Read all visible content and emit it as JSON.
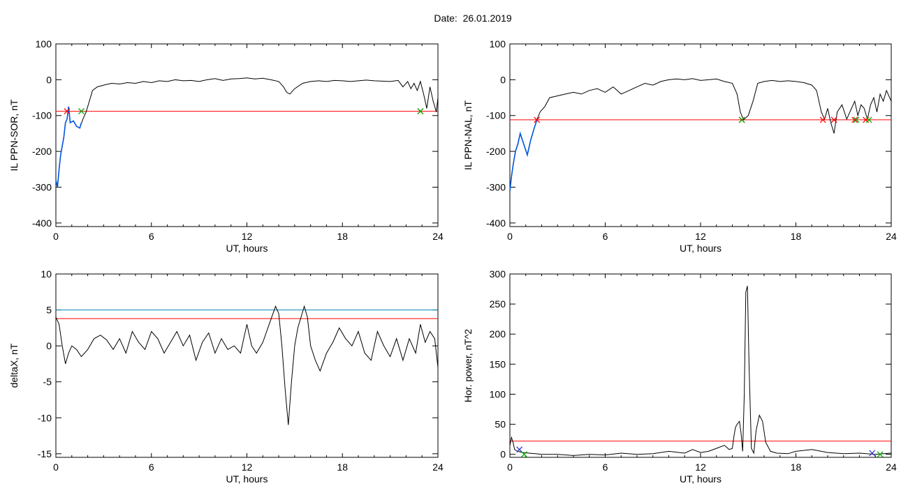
{
  "figure": {
    "title": "Date:  26.01.2019"
  },
  "chart_data": [
    {
      "id": "p1",
      "type": "line",
      "xlabel": "UT, hours",
      "ylabel": "IL PPN-SOR, nT",
      "xlim": [
        0,
        24
      ],
      "ylim": [
        -410,
        100
      ],
      "xticks": [
        0,
        6,
        12,
        18,
        24
      ],
      "yticks": [
        100,
        0,
        -100,
        -200,
        -300,
        -400
      ],
      "thresholds": [
        {
          "value": -88,
          "color": "#ff0000"
        }
      ],
      "markers": [
        {
          "x": 0.7,
          "y": -88,
          "symbol": "x",
          "color": "#ff0000"
        },
        {
          "x": 1.6,
          "y": -88,
          "symbol": "x",
          "color": "#00aa00"
        },
        {
          "x": 22.9,
          "y": -88,
          "symbol": "x",
          "color": "#ff0000"
        },
        {
          "x": 22.9,
          "y": -88,
          "symbol": "x",
          "color": "#00aa00"
        }
      ],
      "series": [
        {
          "color": "#000000",
          "x": [
            0,
            0.1,
            0.2,
            0.3,
            0.5,
            0.6,
            0.7,
            0.8,
            0.9,
            1.1,
            1.3,
            1.5,
            1.7,
            1.9,
            2.1,
            2.3,
            2.6,
            3.0,
            3.5,
            4.0,
            4.5,
            5.0,
            5.5,
            6.0,
            6.5,
            7.0,
            7.5,
            8.0,
            8.5,
            9.0,
            9.5,
            10.0,
            10.5,
            11.0,
            11.5,
            12.0,
            12.5,
            13.0,
            13.5,
            14.0,
            14.3,
            14.5,
            14.7,
            15.0,
            15.5,
            16.0,
            16.5,
            17.0,
            17.5,
            18.0,
            18.5,
            19.0,
            19.5,
            20.0,
            20.5,
            21.0,
            21.5,
            21.8,
            22.1,
            22.3,
            22.5,
            22.7,
            22.9,
            23.1,
            23.3,
            23.5,
            23.7,
            23.9,
            24.0
          ],
          "y": [
            -280,
            -300,
            -250,
            -210,
            -160,
            -120,
            -110,
            -75,
            -120,
            -115,
            -130,
            -135,
            -110,
            -90,
            -60,
            -30,
            -20,
            -15,
            -10,
            -12,
            -8,
            -10,
            -5,
            -8,
            -3,
            -5,
            0,
            -3,
            -2,
            -5,
            0,
            3,
            -2,
            2,
            3,
            5,
            2,
            4,
            0,
            -5,
            -20,
            -35,
            -40,
            -25,
            -10,
            -5,
            -3,
            -5,
            -2,
            -3,
            -5,
            -3,
            -1,
            -3,
            -4,
            -5,
            -2,
            -20,
            -5,
            -25,
            -10,
            -30,
            -5,
            -40,
            -80,
            -20,
            -60,
            -90,
            -50
          ]
        },
        {
          "color": "#0055dd",
          "x": [
            0,
            0.1,
            0.2,
            0.3,
            0.5,
            0.6,
            0.7,
            0.8,
            0.9,
            1.1,
            1.3,
            1.5,
            1.6
          ],
          "y": [
            -280,
            -300,
            -250,
            -210,
            -160,
            -120,
            -110,
            -75,
            -120,
            -115,
            -130,
            -135,
            -120
          ]
        }
      ]
    },
    {
      "id": "p2",
      "type": "line",
      "xlabel": "UT, hours",
      "ylabel": "IL PPN-NAL, nT",
      "xlim": [
        0,
        24
      ],
      "ylim": [
        -410,
        100
      ],
      "xticks": [
        0,
        6,
        12,
        18,
        24
      ],
      "yticks": [
        100,
        0,
        -100,
        -200,
        -300,
        -400
      ],
      "thresholds": [
        {
          "value": -112,
          "color": "#ff0000"
        }
      ],
      "markers": [
        {
          "x": 1.7,
          "y": -112,
          "symbol": "x",
          "color": "#ff0000"
        },
        {
          "x": 14.6,
          "y": -112,
          "symbol": "x",
          "color": "#ff0000"
        },
        {
          "x": 14.6,
          "y": -112,
          "symbol": "x",
          "color": "#00aa00"
        },
        {
          "x": 19.7,
          "y": -112,
          "symbol": "x",
          "color": "#ff0000"
        },
        {
          "x": 20.4,
          "y": -112,
          "symbol": "x",
          "color": "#ff0000"
        },
        {
          "x": 21.7,
          "y": -112,
          "symbol": "x",
          "color": "#ff0000"
        },
        {
          "x": 21.8,
          "y": -112,
          "symbol": "x",
          "color": "#00aa00"
        },
        {
          "x": 22.4,
          "y": -112,
          "symbol": "x",
          "color": "#ff0000"
        },
        {
          "x": 22.6,
          "y": -112,
          "symbol": "x",
          "color": "#00aa00"
        }
      ],
      "series": [
        {
          "color": "#000000",
          "x": [
            0,
            0.1,
            0.2,
            0.35,
            0.5,
            0.65,
            0.8,
            0.95,
            1.1,
            1.3,
            1.5,
            1.7,
            1.9,
            2.2,
            2.5,
            3.0,
            3.5,
            4.0,
            4.5,
            5.0,
            5.5,
            6.0,
            6.5,
            7.0,
            7.5,
            8.0,
            8.5,
            9.0,
            9.5,
            10.0,
            10.5,
            11.0,
            11.5,
            12.0,
            12.5,
            13.0,
            13.5,
            14.0,
            14.3,
            14.5,
            14.7,
            15.0,
            15.3,
            15.6,
            16.0,
            16.5,
            17.0,
            17.5,
            18.0,
            18.5,
            19.0,
            19.3,
            19.6,
            19.8,
            20.0,
            20.2,
            20.4,
            20.6,
            20.9,
            21.2,
            21.5,
            21.7,
            21.9,
            22.1,
            22.3,
            22.5,
            22.7,
            22.9,
            23.1,
            23.3,
            23.5,
            23.7,
            23.9,
            24.0
          ],
          "y": [
            -310,
            -270,
            -240,
            -200,
            -180,
            -150,
            -170,
            -190,
            -210,
            -170,
            -140,
            -112,
            -90,
            -75,
            -50,
            -45,
            -40,
            -35,
            -40,
            -30,
            -25,
            -35,
            -20,
            -40,
            -30,
            -20,
            -10,
            -15,
            -5,
            0,
            2,
            0,
            3,
            -2,
            0,
            2,
            -5,
            -10,
            -40,
            -90,
            -112,
            -100,
            -60,
            -10,
            -5,
            -2,
            -5,
            -3,
            -5,
            -8,
            -15,
            -30,
            -90,
            -110,
            -80,
            -120,
            -150,
            -90,
            -70,
            -110,
            -80,
            -60,
            -100,
            -70,
            -80,
            -110,
            -70,
            -50,
            -90,
            -40,
            -60,
            -30,
            -50,
            -60
          ]
        },
        {
          "color": "#0055dd",
          "x": [
            0,
            0.1,
            0.2,
            0.35,
            0.5,
            0.65,
            0.8,
            0.95,
            1.1,
            1.3,
            1.5,
            1.7
          ],
          "y": [
            -310,
            -270,
            -240,
            -200,
            -180,
            -150,
            -170,
            -190,
            -210,
            -170,
            -140,
            -112
          ]
        }
      ]
    },
    {
      "id": "p3",
      "type": "line",
      "xlabel": "UT, hours",
      "ylabel": "deltaX, nT",
      "xlim": [
        0,
        24
      ],
      "ylim": [
        -15.5,
        10
      ],
      "xticks": [
        0,
        6,
        12,
        18,
        24
      ],
      "yticks": [
        10,
        5,
        0,
        -5,
        -10,
        -15
      ],
      "thresholds": [
        {
          "value": 5.0,
          "color": "#0088bb"
        },
        {
          "value": 3.8,
          "color": "#ff0000"
        }
      ],
      "markers": [],
      "series": [
        {
          "color": "#000000",
          "x": [
            0,
            0.2,
            0.4,
            0.6,
            0.8,
            1.0,
            1.3,
            1.6,
            2.0,
            2.4,
            2.8,
            3.2,
            3.6,
            4.0,
            4.4,
            4.8,
            5.2,
            5.6,
            6.0,
            6.4,
            6.8,
            7.2,
            7.6,
            8.0,
            8.4,
            8.8,
            9.2,
            9.6,
            10.0,
            10.4,
            10.8,
            11.2,
            11.6,
            12.0,
            12.3,
            12.6,
            13.0,
            13.4,
            13.8,
            14.0,
            14.2,
            14.4,
            14.6,
            14.8,
            15.0,
            15.2,
            15.4,
            15.6,
            15.8,
            16.0,
            16.3,
            16.6,
            17.0,
            17.4,
            17.8,
            18.2,
            18.6,
            19.0,
            19.4,
            19.8,
            20.2,
            20.6,
            21.0,
            21.4,
            21.8,
            22.2,
            22.6,
            22.9,
            23.2,
            23.5,
            23.8,
            24.0
          ],
          "y": [
            4.0,
            3.0,
            0.0,
            -2.5,
            -1.0,
            0.0,
            -0.5,
            -1.5,
            -0.5,
            1.0,
            1.5,
            0.8,
            -0.5,
            1.0,
            -1.0,
            2.0,
            0.5,
            -0.5,
            2.0,
            1.0,
            -1.0,
            0.5,
            2.0,
            0.0,
            1.5,
            -2.0,
            0.5,
            1.8,
            -1.0,
            1.0,
            -0.5,
            0.0,
            -1.0,
            3.0,
            0.0,
            -1.0,
            0.5,
            3.0,
            5.5,
            4.5,
            0.0,
            -6.0,
            -11.0,
            -5.0,
            0.0,
            2.5,
            4.0,
            5.5,
            4.0,
            0.0,
            -2.0,
            -3.5,
            -1.0,
            0.5,
            2.5,
            1.0,
            0.0,
            2.0,
            -1.0,
            -2.0,
            2.0,
            0.0,
            -1.5,
            1.0,
            -2.0,
            1.0,
            -1.0,
            3.0,
            0.5,
            2.0,
            1.0,
            -3.0
          ]
        }
      ]
    },
    {
      "id": "p4",
      "type": "line",
      "xlabel": "UT, hours",
      "ylabel": "Hor. power, nT^2",
      "xlim": [
        0,
        24
      ],
      "ylim": [
        -5,
        300
      ],
      "xticks": [
        0,
        6,
        12,
        18,
        24
      ],
      "yticks": [
        300,
        250,
        200,
        150,
        100,
        50,
        0
      ],
      "thresholds": [
        {
          "value": 22,
          "color": "#ff0000"
        }
      ],
      "markers": [
        {
          "x": 0.6,
          "y": 8,
          "symbol": "x",
          "color": "#3333cc"
        },
        {
          "x": 0.9,
          "y": 0,
          "symbol": "x",
          "color": "#00aa00"
        },
        {
          "x": 22.8,
          "y": 2,
          "symbol": "x",
          "color": "#3333cc"
        },
        {
          "x": 23.3,
          "y": 0,
          "symbol": "x",
          "color": "#00aa00"
        }
      ],
      "series": [
        {
          "color": "#000000",
          "x": [
            0,
            0.1,
            0.2,
            0.3,
            0.5,
            0.8,
            1.2,
            1.6,
            2.0,
            3.0,
            4.0,
            5.0,
            6.0,
            7.0,
            8.0,
            9.0,
            10.0,
            11.0,
            11.5,
            12.0,
            12.5,
            13.0,
            13.5,
            13.8,
            14.0,
            14.1,
            14.2,
            14.3,
            14.45,
            14.55,
            14.65,
            14.75,
            14.85,
            14.95,
            15.05,
            15.2,
            15.35,
            15.5,
            15.7,
            15.9,
            16.1,
            16.4,
            16.8,
            17.5,
            18.0,
            19.0,
            20.0,
            21.0,
            22.0,
            23.0,
            23.5,
            24.0
          ],
          "y": [
            15,
            28,
            20,
            8,
            5,
            3,
            2,
            1,
            0,
            0,
            -2,
            0,
            -1,
            2,
            0,
            1,
            5,
            2,
            8,
            3,
            5,
            10,
            15,
            8,
            10,
            30,
            45,
            50,
            55,
            35,
            5,
            100,
            270,
            280,
            150,
            10,
            2,
            40,
            65,
            55,
            20,
            5,
            2,
            1,
            5,
            8,
            3,
            1,
            2,
            0,
            1,
            2
          ]
        }
      ]
    }
  ]
}
